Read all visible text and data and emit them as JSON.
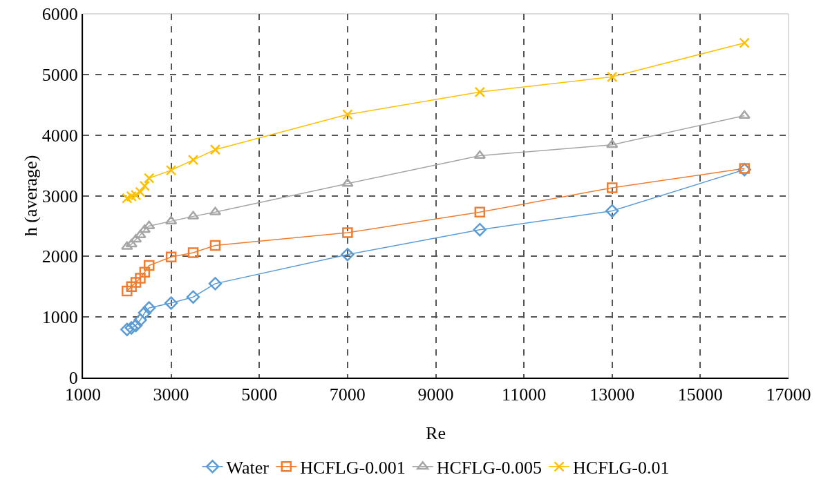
{
  "chart_data": {
    "type": "line",
    "xlabel": "Re",
    "ylabel": "h (average)",
    "x": [
      2000,
      2100,
      2200,
      2300,
      2400,
      2500,
      3000,
      3500,
      4000,
      7000,
      10000,
      13000,
      16000
    ],
    "series": [
      {
        "name": "Water",
        "color": "#5b9bd5",
        "marker": "diamond",
        "values": [
          795,
          820,
          860,
          950,
          1070,
          1150,
          1230,
          1330,
          1550,
          2030,
          2440,
          2750,
          3430
        ]
      },
      {
        "name": "HCFLG-0.001",
        "color": "#ed7d31",
        "marker": "square",
        "values": [
          1430,
          1500,
          1570,
          1640,
          1740,
          1850,
          1990,
          2060,
          2180,
          2390,
          2730,
          3130,
          3450
        ]
      },
      {
        "name": "HCFLG-0.005",
        "color": "#a5a5a5",
        "marker": "triangle",
        "values": [
          2160,
          2200,
          2280,
          2350,
          2440,
          2500,
          2580,
          2660,
          2730,
          3200,
          3660,
          3840,
          4320
        ]
      },
      {
        "name": "HCFLG-0.01",
        "color": "#ffc000",
        "marker": "cross",
        "values": [
          2960,
          2990,
          3010,
          3060,
          3160,
          3290,
          3420,
          3590,
          3760,
          4340,
          4710,
          4960,
          5520
        ]
      }
    ],
    "xlim": [
      1000,
      17000
    ],
    "xticks": [
      1000,
      3000,
      5000,
      7000,
      9000,
      11000,
      13000,
      15000,
      17000
    ],
    "ylim": [
      0,
      6000
    ],
    "yticks": [
      0,
      1000,
      2000,
      3000,
      4000,
      5000,
      6000
    ],
    "grid": true,
    "legend": "bottom",
    "line_style": "solid"
  }
}
